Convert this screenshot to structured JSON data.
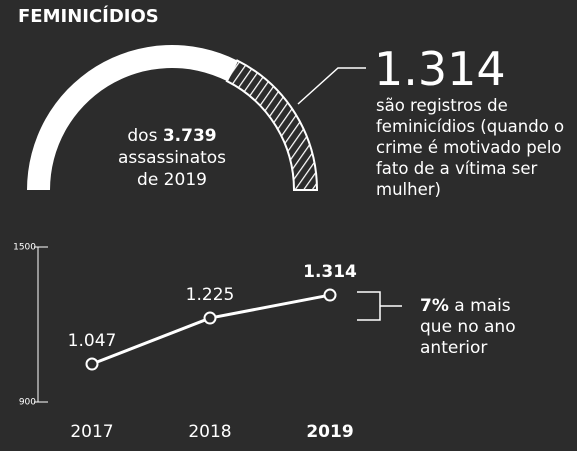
{
  "title": "FEMINICÍDIOS",
  "chart_data": [
    {
      "type": "gauge",
      "value": 1314,
      "value_label": "1.314",
      "total": 3739,
      "total_label": "3.739",
      "text_before_total": "dos",
      "text_after_total": "assassinatos de 2019",
      "description": "são registros de feminicídios (quando o crime é motivado pelo fato de a vítima ser mulher)",
      "color": "#ffffff"
    },
    {
      "type": "line",
      "categories": [
        "2017",
        "2018",
        "2019"
      ],
      "values": [
        1047,
        1225,
        1314
      ],
      "value_labels": [
        "1.047",
        "1.225",
        "1.314"
      ],
      "ylim": [
        900,
        1500
      ],
      "yticks": [
        900,
        1500
      ],
      "annotation_value": "7%",
      "annotation_text": "a mais que no ano anterior",
      "color": "#ffffff"
    }
  ]
}
